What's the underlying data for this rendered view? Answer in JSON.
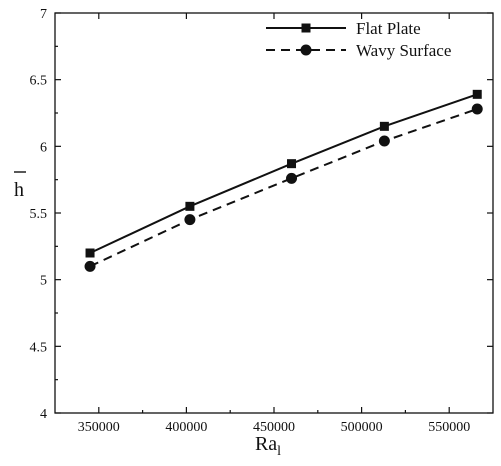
{
  "chart_data": {
    "type": "line",
    "xlabel": "Ra",
    "xlabel_subscript": "l",
    "ylabel": "h",
    "xlim": [
      325000,
      575000
    ],
    "ylim": [
      4,
      7
    ],
    "xticks": [
      350000,
      400000,
      450000,
      500000,
      550000
    ],
    "yticks": [
      4,
      4.5,
      5,
      5.5,
      6,
      6.5,
      7
    ],
    "xtick_labels": [
      "350000",
      "400000",
      "450000",
      "500000",
      "550000"
    ],
    "ytick_labels": [
      "4",
      "4.5",
      "5",
      "5.5",
      "6",
      "6.5",
      "7"
    ],
    "grid": false,
    "legend": "top-right",
    "series": [
      {
        "name": "Flat Plate",
        "line": "solid",
        "marker": "square",
        "color": "#111111",
        "x": [
          345000,
          402000,
          460000,
          513000,
          566000
        ],
        "y": [
          5.2,
          5.55,
          5.87,
          6.15,
          6.39
        ]
      },
      {
        "name": "Wavy Surface",
        "line": "dashed",
        "marker": "circle",
        "color": "#111111",
        "x": [
          345000,
          402000,
          460000,
          513000,
          566000
        ],
        "y": [
          5.1,
          5.45,
          5.76,
          6.04,
          6.28
        ]
      }
    ]
  }
}
